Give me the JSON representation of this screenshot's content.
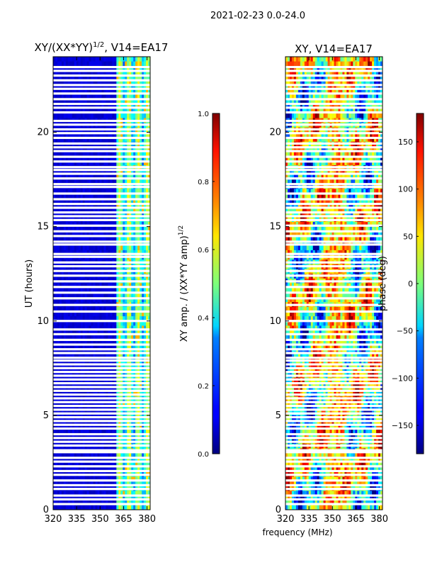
{
  "figure": {
    "suptitle": "2021-02-23 0.0-24.0",
    "xlabel": "frequency (MHz)"
  },
  "chart_data": [
    {
      "type": "heatmap",
      "title": "XY/(XX*YY)",
      "title_superscript": "1/2",
      "title_suffix": ", V14=EA17",
      "xlabel": "",
      "ylabel": "UT (hours)",
      "xlim": [
        320,
        382
      ],
      "ylim": [
        0,
        24
      ],
      "xticks": [
        "320",
        "335",
        "350",
        "365",
        "380"
      ],
      "xtick_values": [
        320,
        335,
        350,
        365,
        380
      ],
      "yticks": [
        "0",
        "5",
        "10",
        "15",
        "20"
      ],
      "ytick_values": [
        0,
        5,
        10,
        15,
        20
      ],
      "colormap": "jet",
      "colorbar": {
        "label": "XY amp. / (XX*YY amp)",
        "label_superscript": "1/2",
        "range": [
          0.0,
          1.0
        ],
        "ticks": [
          "0.0",
          "0.2",
          "0.4",
          "0.6",
          "0.8",
          "1.0"
        ],
        "tick_values": [
          0.0,
          0.2,
          0.4,
          0.6,
          0.8,
          1.0
        ]
      },
      "description_values": {
        "background_level": 0.05,
        "band_range_mhz": [
          361,
          382
        ],
        "band_level_range": [
          0.35,
          0.6
        ]
      }
    },
    {
      "type": "heatmap",
      "title": "XY, V14=EA17",
      "xlabel": "frequency (MHz)",
      "ylabel": "",
      "xlim": [
        320,
        382
      ],
      "ylim": [
        0,
        24
      ],
      "xticks": [
        "320",
        "335",
        "350",
        "365",
        "380"
      ],
      "xtick_values": [
        320,
        335,
        350,
        365,
        380
      ],
      "yticks": [
        "0",
        "5",
        "10",
        "15",
        "20"
      ],
      "ytick_values": [
        0,
        5,
        10,
        15,
        20
      ],
      "colormap": "jet",
      "colorbar": {
        "label": "phase (deg)",
        "range": [
          -180,
          180
        ],
        "ticks": [
          "−150",
          "−100",
          "−50",
          "0",
          "50",
          "100",
          "150"
        ],
        "tick_values": [
          -150,
          -100,
          -50,
          0,
          50,
          100,
          150
        ]
      }
    }
  ],
  "flagged_rows_hours": [
    0.3,
    0.55,
    0.75,
    1.1,
    1.3,
    1.55,
    1.85,
    2.05,
    2.3,
    2.55,
    2.75,
    3.05,
    3.15,
    3.4,
    3.6,
    3.8,
    4.0,
    4.3,
    4.5,
    4.7,
    4.9,
    5.1,
    5.3,
    5.5,
    5.7,
    5.9,
    6.1,
    6.3,
    6.5,
    6.7,
    6.9,
    7.1,
    7.3,
    7.5,
    7.7,
    7.9,
    8.05,
    8.3,
    8.5,
    8.75,
    9.0,
    9.3,
    9.55,
    10.0,
    10.5,
    10.85,
    11.2,
    11.5,
    11.8,
    12.1,
    12.4,
    12.65,
    12.9,
    13.1,
    13.4,
    13.55,
    14.05,
    14.2,
    14.5,
    14.75,
    15.05,
    15.35,
    15.55,
    15.75,
    16.0,
    16.2,
    16.45,
    16.75,
    17.1,
    17.25,
    17.55,
    17.8,
    18.0,
    18.15,
    18.45,
    18.7,
    19.0,
    19.2,
    19.4,
    19.7,
    19.95,
    20.15,
    20.4,
    20.6,
    21.05,
    21.3,
    21.5,
    21.75,
    22.05,
    22.3,
    22.5,
    22.75,
    23.0,
    23.25,
    23.45
  ]
}
